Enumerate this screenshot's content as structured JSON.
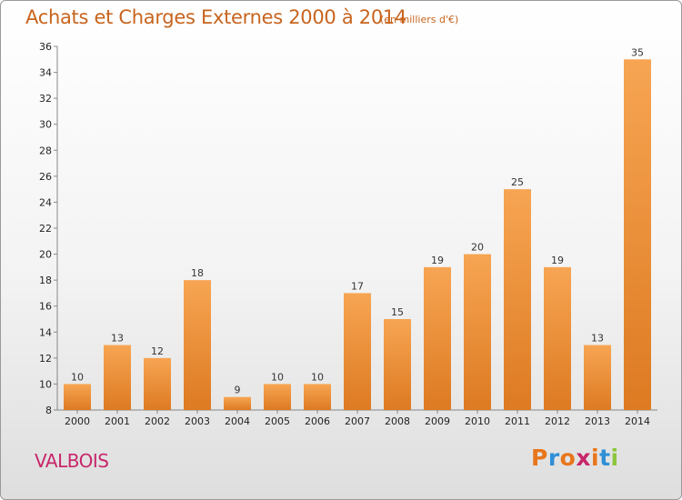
{
  "header": {
    "title": "Achats et Charges Externes 2000 à 2014",
    "unit": "(en milliers d'€)"
  },
  "footer": {
    "place": "VALBOIS",
    "logo": "Proxiti"
  },
  "colors": {
    "title": "#c8641d",
    "place": "#c8266a",
    "bar_top": "#f7a553",
    "bar_bottom": "#dd7a22",
    "logo_letters": [
      "#e8761c",
      "#2f8fd6",
      "#e8761c",
      "#c8266a",
      "#e8761c",
      "#2f8fd6",
      "#8cc63f"
    ]
  },
  "chart_data": {
    "type": "bar",
    "title": "Achats et Charges Externes 2000 à 2014",
    "subtitle": "(en milliers d'€)",
    "xlabel": "",
    "ylabel": "",
    "categories": [
      "2000",
      "2001",
      "2002",
      "2003",
      "2004",
      "2005",
      "2006",
      "2007",
      "2008",
      "2009",
      "2010",
      "2011",
      "2012",
      "2013",
      "2014"
    ],
    "values": [
      10,
      13,
      12,
      18,
      9,
      10,
      10,
      17,
      15,
      19,
      20,
      25,
      19,
      13,
      35
    ],
    "ylim": [
      8,
      36
    ],
    "yticks": [
      8,
      10,
      12,
      14,
      16,
      18,
      20,
      22,
      24,
      26,
      28,
      30,
      32,
      34,
      36
    ],
    "grid": false,
    "legend": "none"
  }
}
